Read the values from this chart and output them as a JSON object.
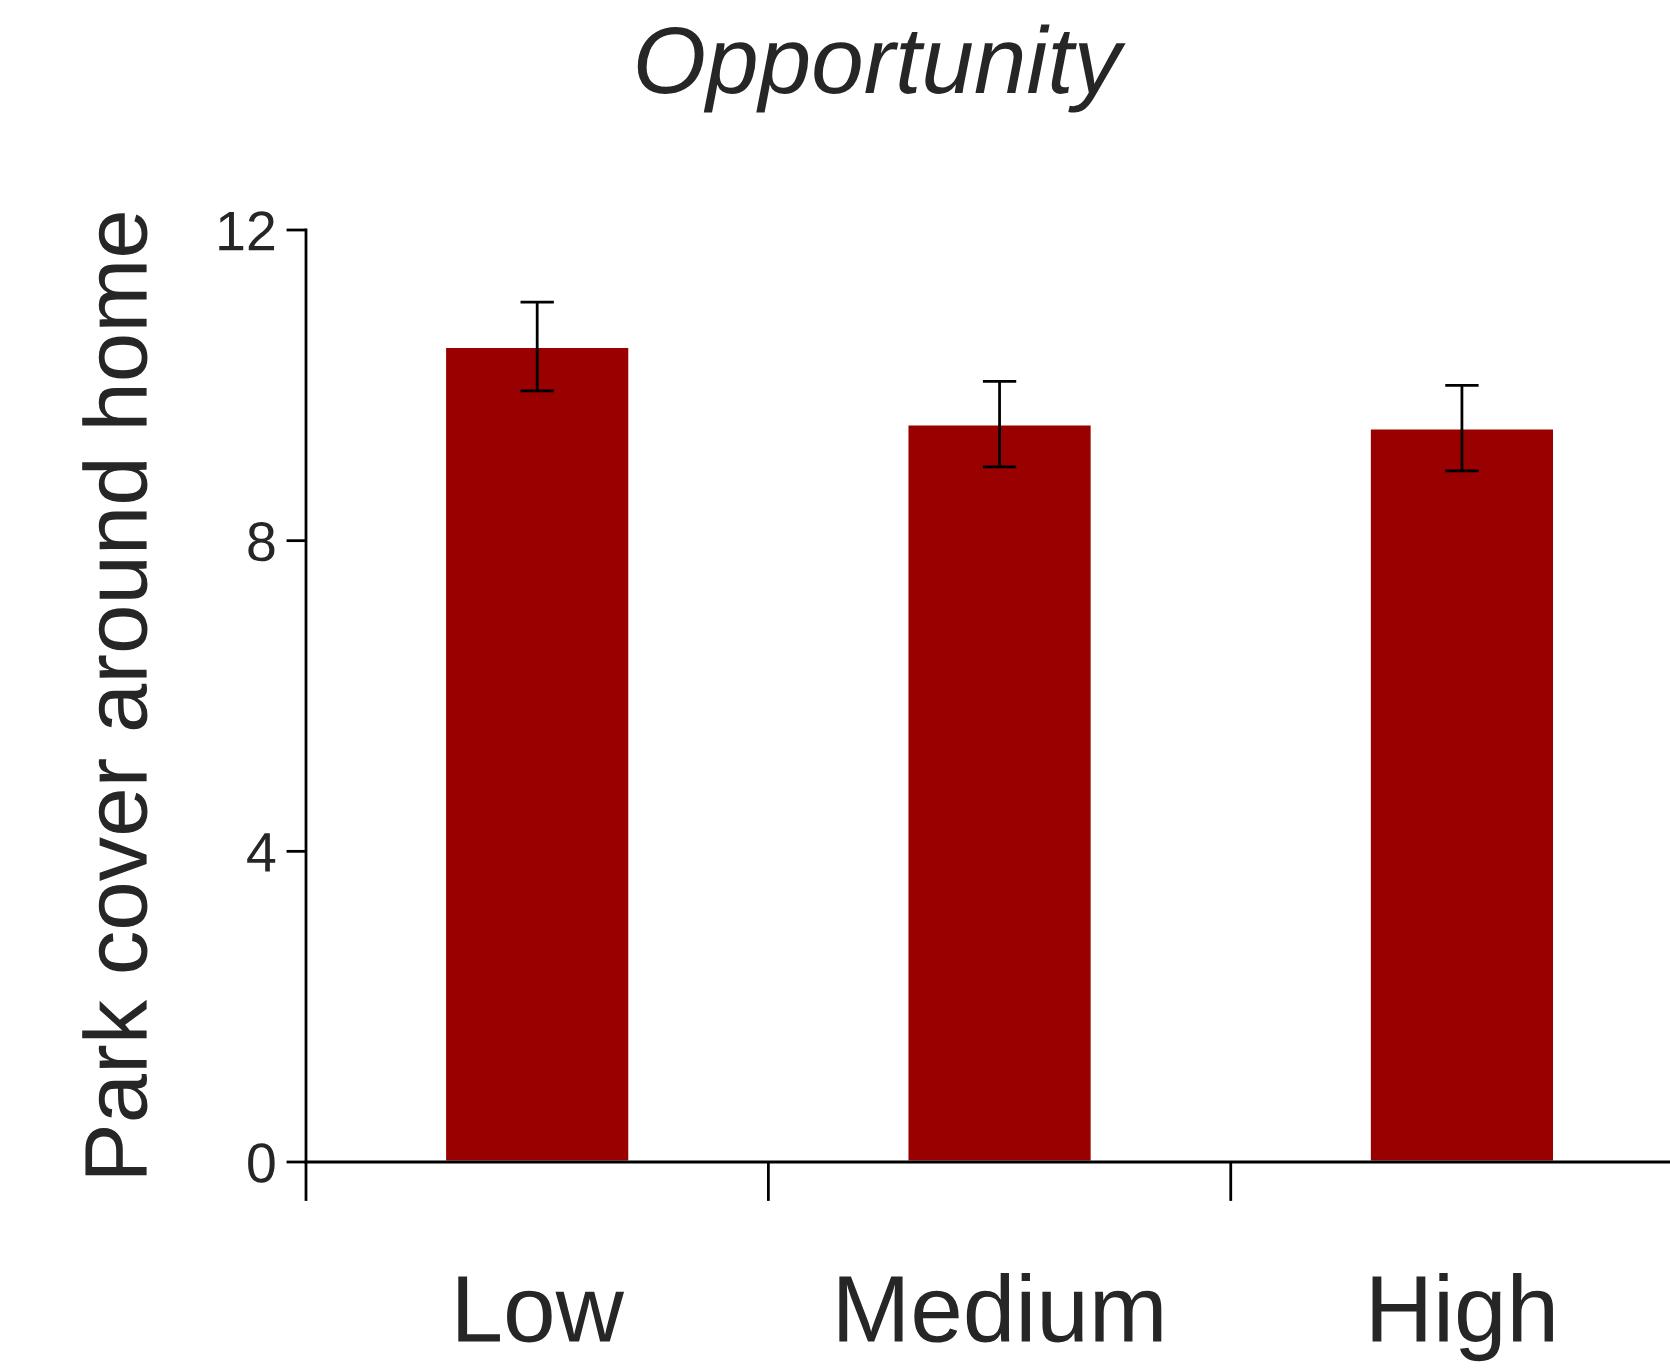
{
  "chart_data": {
    "type": "bar",
    "title": "Opportunity",
    "ylabel": "Park cover around home",
    "categories": [
      "Low",
      "Medium",
      "High"
    ],
    "values": [
      10.5,
      9.5,
      9.45
    ],
    "errors": [
      0.57,
      0.55,
      0.55
    ],
    "color": "#990000",
    "ylim": [
      0,
      12
    ],
    "yticks": [
      0,
      4,
      8,
      12
    ],
    "grid": false,
    "legend": false
  }
}
